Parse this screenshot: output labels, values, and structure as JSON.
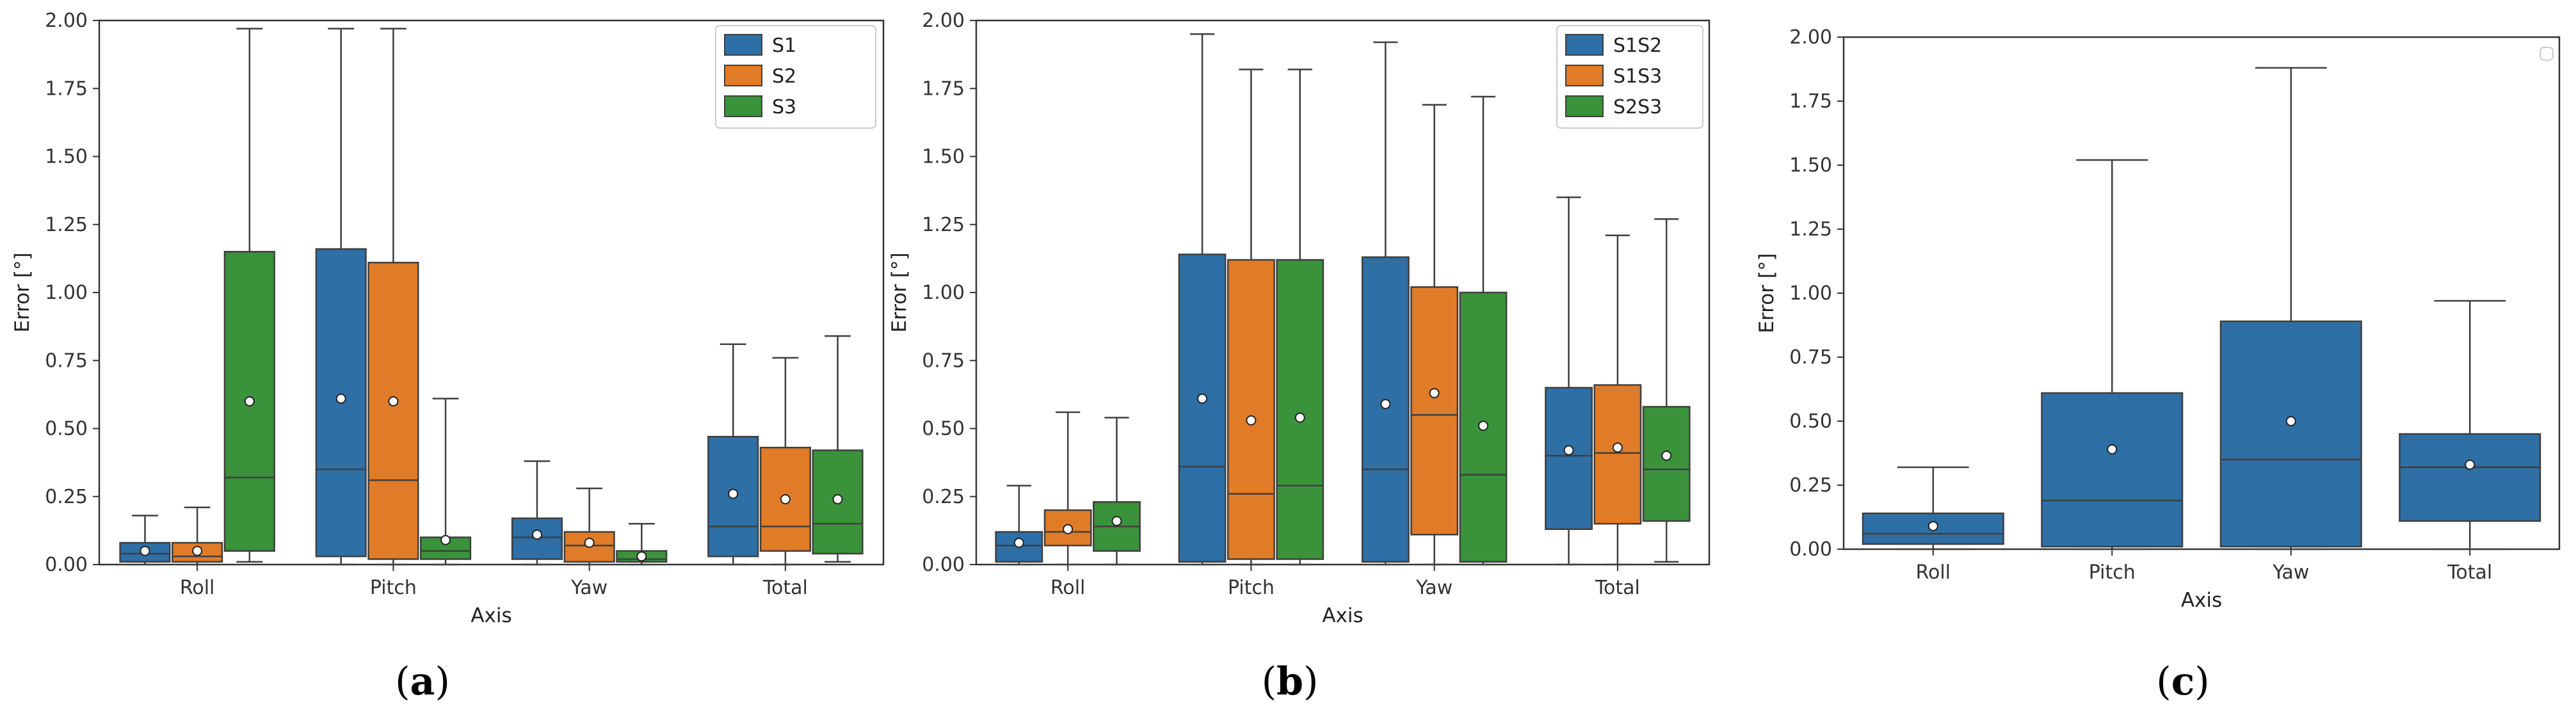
{
  "chart_data": [
    {
      "type": "boxplot",
      "caption_letter": "a",
      "xlabel": "Axis",
      "ylabel": "Error [°]",
      "ylim": [
        0,
        2
      ],
      "yticks": [
        "0.00",
        "0.25",
        "0.50",
        "0.75",
        "1.00",
        "1.25",
        "1.50",
        "1.75",
        "2.00"
      ],
      "categories": [
        "Roll",
        "Pitch",
        "Yaw",
        "Total"
      ],
      "legend": {
        "position": "top-right",
        "entries": [
          "S1",
          "S2",
          "S3"
        ]
      },
      "series": [
        {
          "name": "S1",
          "color": "#2e6fa6",
          "boxes": [
            {
              "min": 0.0,
              "q1": 0.01,
              "median": 0.04,
              "q3": 0.08,
              "max": 0.18,
              "mean": 0.05
            },
            {
              "min": 0.0,
              "q1": 0.03,
              "median": 0.35,
              "q3": 1.16,
              "max": 1.97,
              "mean": 0.61
            },
            {
              "min": 0.0,
              "q1": 0.02,
              "median": 0.1,
              "q3": 0.17,
              "max": 0.38,
              "mean": 0.11
            },
            {
              "min": 0.0,
              "q1": 0.03,
              "median": 0.14,
              "q3": 0.47,
              "max": 0.81,
              "mean": 0.26
            }
          ]
        },
        {
          "name": "S2",
          "color": "#e07b28",
          "boxes": [
            {
              "min": 0.0,
              "q1": 0.01,
              "median": 0.03,
              "q3": 0.08,
              "max": 0.21,
              "mean": 0.05
            },
            {
              "min": 0.0,
              "q1": 0.02,
              "median": 0.31,
              "q3": 1.11,
              "max": 1.97,
              "mean": 0.6
            },
            {
              "min": 0.0,
              "q1": 0.01,
              "median": 0.07,
              "q3": 0.12,
              "max": 0.28,
              "mean": 0.08
            },
            {
              "min": 0.0,
              "q1": 0.05,
              "median": 0.14,
              "q3": 0.43,
              "max": 0.76,
              "mean": 0.24
            }
          ]
        },
        {
          "name": "S3",
          "color": "#3a923a",
          "boxes": [
            {
              "min": 0.01,
              "q1": 0.05,
              "median": 0.32,
              "q3": 1.15,
              "max": 1.97,
              "mean": 0.6
            },
            {
              "min": 0.0,
              "q1": 0.02,
              "median": 0.05,
              "q3": 0.1,
              "max": 0.61,
              "mean": 0.09
            },
            {
              "min": 0.0,
              "q1": 0.01,
              "median": 0.02,
              "q3": 0.05,
              "max": 0.15,
              "mean": 0.03
            },
            {
              "min": 0.01,
              "q1": 0.04,
              "median": 0.15,
              "q3": 0.42,
              "max": 0.84,
              "mean": 0.24
            }
          ]
        }
      ]
    },
    {
      "type": "boxplot",
      "caption_letter": "b",
      "xlabel": "Axis",
      "ylabel": "Error [°]",
      "ylim": [
        0,
        2
      ],
      "yticks": [
        "0.00",
        "0.25",
        "0.50",
        "0.75",
        "1.00",
        "1.25",
        "1.50",
        "1.75",
        "2.00"
      ],
      "categories": [
        "Roll",
        "Pitch",
        "Yaw",
        "Total"
      ],
      "legend": {
        "position": "top-right",
        "entries": [
          "S1S2",
          "S1S3",
          "S2S3"
        ]
      },
      "series": [
        {
          "name": "S1S2",
          "color": "#2e6fa6",
          "boxes": [
            {
              "min": 0.0,
              "q1": 0.01,
              "median": 0.07,
              "q3": 0.12,
              "max": 0.29,
              "mean": 0.08
            },
            {
              "min": 0.0,
              "q1": 0.01,
              "median": 0.36,
              "q3": 1.14,
              "max": 1.95,
              "mean": 0.61
            },
            {
              "min": 0.0,
              "q1": 0.01,
              "median": 0.35,
              "q3": 1.13,
              "max": 1.92,
              "mean": 0.59
            },
            {
              "min": 0.0,
              "q1": 0.13,
              "median": 0.4,
              "q3": 0.65,
              "max": 1.35,
              "mean": 0.42
            }
          ]
        },
        {
          "name": "S1S3",
          "color": "#e07b28",
          "boxes": [
            {
              "min": 0.0,
              "q1": 0.07,
              "median": 0.12,
              "q3": 0.2,
              "max": 0.56,
              "mean": 0.13
            },
            {
              "min": 0.0,
              "q1": 0.02,
              "median": 0.26,
              "q3": 1.12,
              "max": 1.82,
              "mean": 0.53
            },
            {
              "min": 0.0,
              "q1": 0.11,
              "median": 0.55,
              "q3": 1.02,
              "max": 1.69,
              "mean": 0.63
            },
            {
              "min": 0.0,
              "q1": 0.15,
              "median": 0.41,
              "q3": 0.66,
              "max": 1.21,
              "mean": 0.43
            }
          ]
        },
        {
          "name": "S2S3",
          "color": "#3a923a",
          "boxes": [
            {
              "min": 0.0,
              "q1": 0.05,
              "median": 0.14,
              "q3": 0.23,
              "max": 0.54,
              "mean": 0.16
            },
            {
              "min": 0.0,
              "q1": 0.02,
              "median": 0.29,
              "q3": 1.12,
              "max": 1.82,
              "mean": 0.54
            },
            {
              "min": 0.0,
              "q1": 0.01,
              "median": 0.33,
              "q3": 1.0,
              "max": 1.72,
              "mean": 0.51
            },
            {
              "min": 0.01,
              "q1": 0.16,
              "median": 0.35,
              "q3": 0.58,
              "max": 1.27,
              "mean": 0.4
            }
          ]
        }
      ]
    },
    {
      "type": "boxplot",
      "caption_letter": "c",
      "xlabel": "Axis",
      "ylabel": "Error [°]",
      "ylim": [
        0,
        2
      ],
      "yticks": [
        "0.00",
        "0.25",
        "0.50",
        "0.75",
        "1.00",
        "1.25",
        "1.50",
        "1.75",
        "2.00"
      ],
      "categories": [
        "Roll",
        "Pitch",
        "Yaw",
        "Total"
      ],
      "legend": {
        "position": "top-right",
        "entries": []
      },
      "series": [
        {
          "name": "",
          "color": "#2e6fa6",
          "boxes": [
            {
              "min": 0.0,
              "q1": 0.02,
              "median": 0.06,
              "q3": 0.14,
              "max": 0.32,
              "mean": 0.09
            },
            {
              "min": 0.0,
              "q1": 0.01,
              "median": 0.19,
              "q3": 0.61,
              "max": 1.52,
              "mean": 0.39
            },
            {
              "min": 0.0,
              "q1": 0.01,
              "median": 0.35,
              "q3": 0.89,
              "max": 1.88,
              "mean": 0.5
            },
            {
              "min": 0.0,
              "q1": 0.11,
              "median": 0.32,
              "q3": 0.45,
              "max": 0.97,
              "mean": 0.33
            }
          ]
        }
      ]
    }
  ]
}
